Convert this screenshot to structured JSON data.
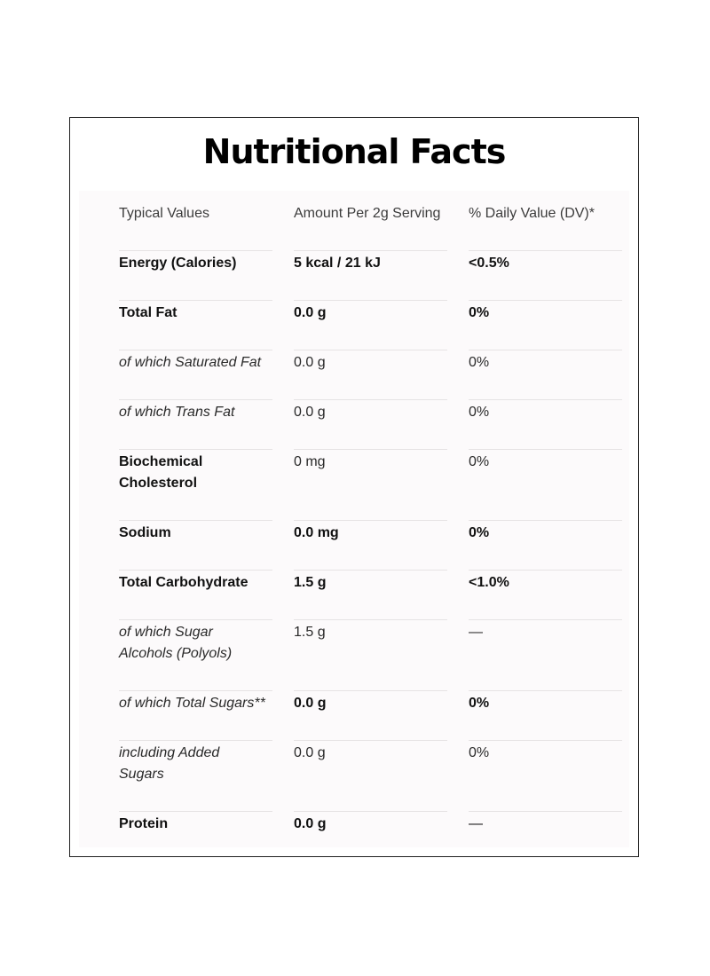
{
  "title": "Nutritional Facts",
  "table": {
    "headers": [
      "Typical Values",
      "Amount Per 2g Serving",
      "% Daily Value (DV)*"
    ],
    "rows": [
      {
        "label": "Energy (Calories)",
        "amount": "5 kcal / 21 kJ",
        "dv": "<0.5%",
        "style": "bold"
      },
      {
        "label": "Total Fat",
        "amount": "0.0 g",
        "dv": "0%",
        "style": "bold"
      },
      {
        "label": "of which Saturated Fat",
        "amount": "0.0 g",
        "dv": "0%",
        "style": "italic"
      },
      {
        "label": "of which Trans Fat",
        "amount": "0.0 g",
        "dv": "0%",
        "style": "italic"
      },
      {
        "label": "Biochemical Cholesterol",
        "amount": "0 mg",
        "dv": "0%",
        "style": "plain"
      },
      {
        "label": "Sodium",
        "amount": "0.0 mg",
        "dv": "0%",
        "style": "bold"
      },
      {
        "label": "Total Carbohydrate",
        "amount": "1.5 g",
        "dv": "<1.0%",
        "style": "bold"
      },
      {
        "label": "of which Sugar Alcohols (Polyols)",
        "amount": "1.5 g",
        "dv": "—",
        "style": "italic"
      },
      {
        "label": "of which Total Sugars**",
        "amount": "0.0 g",
        "dv": "0%",
        "style": "italic-bold"
      },
      {
        "label": "including Added Sugars",
        "amount": "0.0 g",
        "dv": "0%",
        "style": "italic"
      },
      {
        "label": "Protein",
        "amount": "0.0 g",
        "dv": "—",
        "style": "bold"
      }
    ]
  }
}
